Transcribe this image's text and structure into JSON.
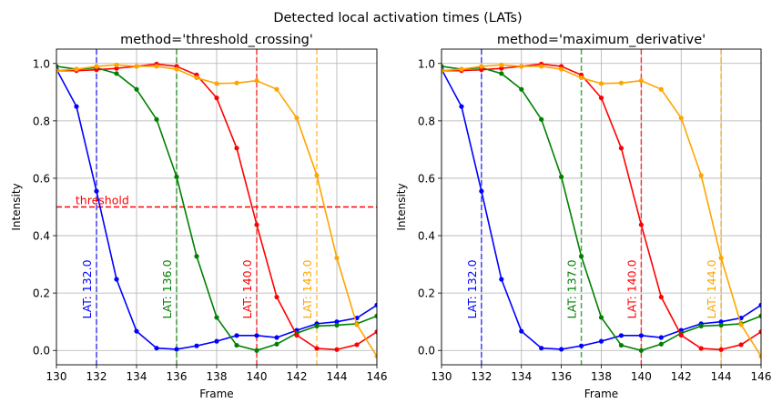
{
  "figure": {
    "suptitle": "Detected local activation times (LATs)"
  },
  "chart_data": [
    {
      "type": "line",
      "title": "method='threshold_crossing'",
      "xlabel": "Frame",
      "ylabel": "Intensity",
      "xlim": [
        130,
        146
      ],
      "ylim": [
        -0.05,
        1.05
      ],
      "xticks": [
        130,
        132,
        134,
        136,
        138,
        140,
        142,
        144,
        146
      ],
      "yticks": [
        0.0,
        0.2,
        0.4,
        0.6,
        0.8,
        1.0
      ],
      "xtick_labels": [
        "130",
        "132",
        "134",
        "136",
        "138",
        "140",
        "142",
        "144",
        "146"
      ],
      "ytick_labels": [
        "0.0",
        "0.2",
        "0.4",
        "0.6",
        "0.8",
        "1.0"
      ],
      "grid": true,
      "threshold": {
        "value": 0.5,
        "label": "threshold",
        "color": "#ff0000"
      },
      "lat_lines": [
        {
          "x": 132,
          "label": "LAT: 132.0",
          "color": "#0000ff"
        },
        {
          "x": 136,
          "label": "LAT: 136.0",
          "color": "#008000"
        },
        {
          "x": 140,
          "label": "LAT: 140.0",
          "color": "#ff0000"
        },
        {
          "x": 143,
          "label": "LAT: 143.0",
          "color": "#ffa500"
        }
      ],
      "series": [
        {
          "color": "#0000ff",
          "x": [
            130,
            131,
            132,
            133,
            134,
            135,
            136,
            137,
            138,
            139,
            140,
            141,
            142,
            143,
            144,
            145,
            146
          ],
          "values": [
            0.98,
            0.85,
            0.555,
            0.248,
            0.067,
            0.008,
            0.004,
            0.016,
            0.032,
            0.052,
            0.052,
            0.045,
            0.07,
            0.093,
            0.1,
            0.113,
            0.158
          ]
        },
        {
          "color": "#008000",
          "x": [
            130,
            131,
            132,
            133,
            134,
            135,
            136,
            137,
            138,
            139,
            140,
            141,
            142,
            143,
            144,
            145,
            146
          ],
          "values": [
            0.99,
            0.98,
            0.985,
            0.965,
            0.91,
            0.805,
            0.605,
            0.328,
            0.115,
            0.018,
            0.0,
            0.022,
            0.06,
            0.085,
            0.088,
            0.093,
            0.12
          ]
        },
        {
          "color": "#ff0000",
          "x": [
            130,
            131,
            132,
            133,
            134,
            135,
            136,
            137,
            138,
            139,
            140,
            141,
            142,
            143,
            144,
            145,
            146
          ],
          "values": [
            0.975,
            0.975,
            0.978,
            0.983,
            0.99,
            0.998,
            0.99,
            0.96,
            0.88,
            0.705,
            0.438,
            0.186,
            0.053,
            0.007,
            0.003,
            0.02,
            0.065
          ]
        },
        {
          "color": "#ffa500",
          "x": [
            130,
            131,
            132,
            133,
            134,
            135,
            136,
            137,
            138,
            139,
            140,
            141,
            142,
            143,
            144,
            145,
            146
          ],
          "values": [
            0.975,
            0.98,
            0.99,
            0.995,
            0.99,
            0.99,
            0.98,
            0.95,
            0.93,
            0.932,
            0.94,
            0.91,
            0.81,
            0.61,
            0.322,
            0.09,
            -0.02
          ]
        }
      ]
    },
    {
      "type": "line",
      "title": "method='maximum_derivative'",
      "xlabel": "Frame",
      "ylabel": "Intensity",
      "xlim": [
        130,
        146
      ],
      "ylim": [
        -0.05,
        1.05
      ],
      "xticks": [
        130,
        132,
        134,
        136,
        138,
        140,
        142,
        144,
        146
      ],
      "yticks": [
        0.0,
        0.2,
        0.4,
        0.6,
        0.8,
        1.0
      ],
      "xtick_labels": [
        "130",
        "132",
        "134",
        "136",
        "138",
        "140",
        "142",
        "144",
        "146"
      ],
      "ytick_labels": [
        "0.0",
        "0.2",
        "0.4",
        "0.6",
        "0.8",
        "1.0"
      ],
      "grid": true,
      "lat_lines": [
        {
          "x": 132,
          "label": "LAT: 132.0",
          "color": "#0000ff"
        },
        {
          "x": 137,
          "label": "LAT: 137.0",
          "color": "#008000"
        },
        {
          "x": 140,
          "label": "LAT: 140.0",
          "color": "#ff0000"
        },
        {
          "x": 144,
          "label": "LAT: 144.0",
          "color": "#ffa500"
        }
      ],
      "series": [
        {
          "color": "#0000ff",
          "x": [
            130,
            131,
            132,
            133,
            134,
            135,
            136,
            137,
            138,
            139,
            140,
            141,
            142,
            143,
            144,
            145,
            146
          ],
          "values": [
            0.98,
            0.85,
            0.555,
            0.248,
            0.067,
            0.008,
            0.004,
            0.016,
            0.032,
            0.052,
            0.052,
            0.045,
            0.07,
            0.093,
            0.1,
            0.113,
            0.158
          ]
        },
        {
          "color": "#008000",
          "x": [
            130,
            131,
            132,
            133,
            134,
            135,
            136,
            137,
            138,
            139,
            140,
            141,
            142,
            143,
            144,
            145,
            146
          ],
          "values": [
            0.99,
            0.98,
            0.985,
            0.965,
            0.91,
            0.805,
            0.605,
            0.328,
            0.115,
            0.018,
            0.0,
            0.022,
            0.06,
            0.085,
            0.088,
            0.093,
            0.12
          ]
        },
        {
          "color": "#ff0000",
          "x": [
            130,
            131,
            132,
            133,
            134,
            135,
            136,
            137,
            138,
            139,
            140,
            141,
            142,
            143,
            144,
            145,
            146
          ],
          "values": [
            0.975,
            0.975,
            0.978,
            0.983,
            0.99,
            0.998,
            0.99,
            0.96,
            0.88,
            0.705,
            0.438,
            0.186,
            0.053,
            0.007,
            0.003,
            0.02,
            0.065
          ]
        },
        {
          "color": "#ffa500",
          "x": [
            130,
            131,
            132,
            133,
            134,
            135,
            136,
            137,
            138,
            139,
            140,
            141,
            142,
            143,
            144,
            145,
            146
          ],
          "values": [
            0.975,
            0.98,
            0.99,
            0.995,
            0.99,
            0.99,
            0.98,
            0.95,
            0.93,
            0.932,
            0.94,
            0.91,
            0.81,
            0.61,
            0.322,
            0.09,
            -0.02
          ]
        }
      ]
    }
  ]
}
